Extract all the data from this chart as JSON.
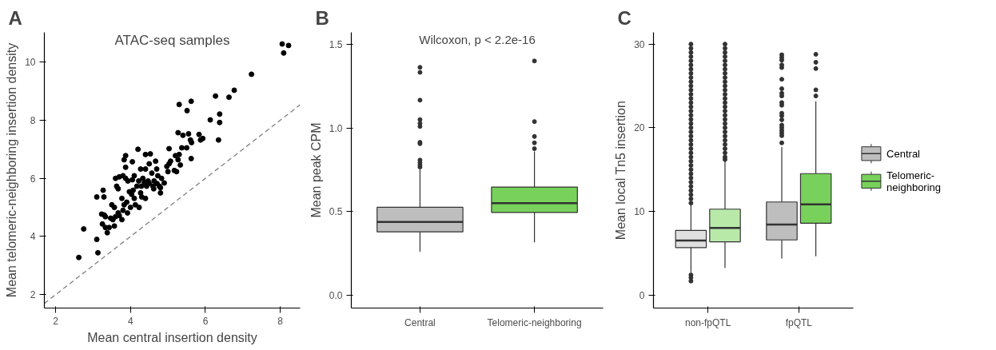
{
  "chart_data": [
    {
      "type": "scatter",
      "title": "A",
      "xlabel": "Mean central insertion density",
      "ylabel": "Mean telomeric-neighboring insertion density",
      "annotations": [
        "ATAC-seq samples"
      ],
      "xlim": [
        1.7,
        8.53
      ],
      "ylim": [
        1.54,
        11.02
      ],
      "xticks": [
        2,
        4,
        6,
        8
      ],
      "yticks": [
        2,
        4,
        6,
        8,
        10
      ],
      "grid": false,
      "legend": false,
      "series": [
        {
          "type": "scatter",
          "marker": "circle",
          "color": "#000000",
          "x": [
            2.62,
            2.75,
            3.1,
            3.13,
            3.1,
            3.27,
            3.29,
            3.23,
            3.3,
            3.25,
            3.33,
            3.38,
            3.43,
            3.33,
            3.5,
            3.57,
            3.57,
            3.47,
            3.6,
            3.63,
            3.67,
            3.7,
            3.6,
            3.8,
            3.87,
            3.83,
            3.87,
            3.87,
            3.77,
            3.8,
            3.77,
            3.7,
            3.9,
            3.93,
            3.92,
            4.0,
            4.03,
            4.05,
            4.1,
            4.07,
            4.13,
            4.17,
            4.2,
            4.23,
            4.22,
            4.29,
            4.3,
            4.33,
            4.4,
            4.4,
            4.4,
            4.43,
            4.47,
            4.5,
            4.53,
            4.57,
            4.6,
            4.63,
            4.67,
            4.7,
            4.73,
            4.77,
            4.8,
            4.83,
            4.9,
            4.97,
            5.0,
            5.03,
            5.03,
            5.07,
            5.17,
            5.2,
            5.23,
            5.27,
            5.3,
            5.27,
            5.3,
            5.33,
            5.37,
            5.4,
            5.5,
            5.51,
            5.55,
            5.6,
            5.62,
            5.63,
            5.62,
            5.83,
            5.87,
            5.93,
            6.13,
            6.27,
            6.35,
            6.38,
            6.38,
            6.63,
            6.77,
            7.23,
            8.05,
            8.09,
            8.22,
            4.37,
            4.5,
            4.62,
            4.71,
            4.8,
            4.27,
            4.1,
            3.97,
            3.83,
            3.67,
            3.53,
            4.05,
            4.27
          ],
          "values": [
            3.28,
            4.26,
            3.9,
            3.44,
            5.36,
            5.59,
            5.36,
            4.77,
            4.74,
            4.43,
            4.31,
            4.13,
            4.31,
            4.68,
            5.09,
            5.0,
            4.36,
            4.63,
            4.68,
            5.73,
            5.64,
            6.05,
            6.0,
            6.09,
            6.0,
            6.64,
            6.78,
            6.38,
            5.31,
            4.9,
            4.58,
            4.72,
            5.18,
            5.91,
            4.81,
            5.0,
            5.45,
            6.57,
            6.09,
            5.59,
            5.09,
            5.73,
            7.0,
            5.0,
            5.91,
            5.73,
            5.36,
            6.0,
            5.31,
            6.32,
            6.82,
            5.73,
            5.91,
            6.5,
            6.84,
            6.18,
            5.73,
            5.91,
            6.59,
            6.32,
            6.09,
            5.73,
            5.5,
            6.0,
            5.84,
            6.41,
            6.23,
            7.02,
            6.5,
            6.59,
            6.27,
            6.78,
            6.23,
            6.64,
            6.82,
            7.57,
            8.54,
            6.46,
            7.05,
            7.48,
            7.05,
            8.33,
            7.53,
            7.32,
            6.68,
            7.23,
            8.65,
            7.51,
            7.32,
            7.37,
            8.01,
            8.83,
            7.32,
            7.92,
            8.21,
            8.79,
            9.03,
            9.58,
            10.62,
            10.31,
            10.57,
            5.86,
            5.82,
            5.64,
            5.82,
            5.68,
            5.5,
            5.31,
            5.54,
            5.09,
            4.81,
            4.58,
            5.95,
            6.32
          ]
        },
        {
          "type": "line",
          "color": "#808080",
          "line_style": "dashed",
          "x": [
            1.7,
            8.53
          ],
          "values": [
            1.7,
            8.53
          ]
        }
      ]
    },
    {
      "type": "box",
      "title": "B",
      "ylabel": "Mean peak CPM",
      "annotations": [
        "Wilcoxon, p < 2.2e-16"
      ],
      "categories": [
        "Central",
        "Telomeric-neighboring"
      ],
      "colors": [
        "#bebebe",
        "#77d15a"
      ],
      "ylim": [
        -0.076,
        1.571
      ],
      "yticks": [
        {
          "value": 0,
          "label": "0.0"
        },
        {
          "value": 0.5,
          "label": "0.5"
        },
        {
          "value": 1,
          "label": "1.0"
        },
        {
          "value": 1.5,
          "label": "1.5"
        }
      ],
      "grid": false,
      "legend": false,
      "boxes": [
        {
          "low": 0.261,
          "q1": 0.379,
          "median": 0.438,
          "q3": 0.526,
          "high": 0.751,
          "outliers": [
            0.766,
            0.778,
            0.793,
            0.808,
            0.906,
            0.914,
            1.009,
            1.027,
            1.05,
            1.166,
            1.332,
            1.362
          ]
        },
        {
          "low": 0.317,
          "q1": 0.495,
          "median": 0.551,
          "q3": 0.647,
          "high": 0.86,
          "outliers": [
            0.876,
            0.911,
            0.949,
            1.038,
            1.4
          ]
        }
      ]
    },
    {
      "type": "box",
      "title": "C",
      "ylabel": "Mean local Tn5 insertion",
      "categories": [
        "non-fpQTL",
        "fpQTL"
      ],
      "ylim": [
        -1.55,
        31.4
      ],
      "yticks": [
        0,
        10,
        20,
        30
      ],
      "grid": false,
      "legend": "right",
      "series": [
        {
          "name": "Central",
          "color": "#bebebe",
          "colors": [
            "#e0e0e0",
            "#bebebe"
          ],
          "boxes": [
            {
              "low": 2.73,
              "q1": 5.67,
              "median": 6.53,
              "q3": 7.73,
              "high": 10.9,
              "outliers": [
                1.68,
                2.09,
                2.41,
                11.0,
                11.5,
                12.0,
                12.5,
                13.0,
                13.5,
                14.0,
                14.5,
                15.0,
                15.5,
                16.0,
                16.5,
                17.0,
                17.5,
                18.0,
                18.5,
                19.0,
                19.5,
                20.0,
                20.5,
                21.0,
                21.5,
                22.0,
                22.5,
                23.0,
                23.5,
                24.0,
                24.5,
                25.0,
                25.5,
                26.0,
                26.5,
                27.0,
                27.5,
                28.0,
                28.5,
                29.0,
                29.5,
                30.0
              ]
            },
            {
              "low": 4.37,
              "q1": 6.59,
              "median": 8.43,
              "q3": 11.13,
              "high": 17.69,
              "outliers": [
                18.19,
                19.05,
                19.37,
                19.68,
                20.0,
                20.32,
                20.95,
                21.43,
                21.74,
                22.69,
                23.01,
                23.8,
                24.12,
                24.66,
                25.8,
                27.19,
                27.51,
                28.08,
                28.4,
                28.72
              ]
            }
          ]
        },
        {
          "name": "Telomeric-\nneighboring",
          "color": "#77d15a",
          "colors": [
            "#b9e9a9",
            "#77d15a"
          ],
          "boxes": [
            {
              "low": 3.26,
              "q1": 6.37,
              "median": 8.02,
              "q3": 10.27,
              "high": 16.04,
              "outliers": [
                16.2,
                16.5,
                17.0,
                17.5,
                18.0,
                18.5,
                19.0,
                19.5,
                20.0,
                20.5,
                21.0,
                21.5,
                22.0,
                22.5,
                23.0,
                23.5,
                24.0,
                24.5,
                25.0,
                25.5,
                26.0,
                26.5,
                27.0,
                27.5,
                28.0,
                28.5,
                29.0,
                29.5,
                30.0
              ]
            },
            {
              "low": 4.63,
              "q1": 8.59,
              "median": 10.84,
              "q3": 14.52,
              "high": 23.17,
              "outliers": [
                23.8,
                24.53,
                27.07,
                27.83,
                28.78
              ]
            }
          ]
        }
      ]
    }
  ]
}
